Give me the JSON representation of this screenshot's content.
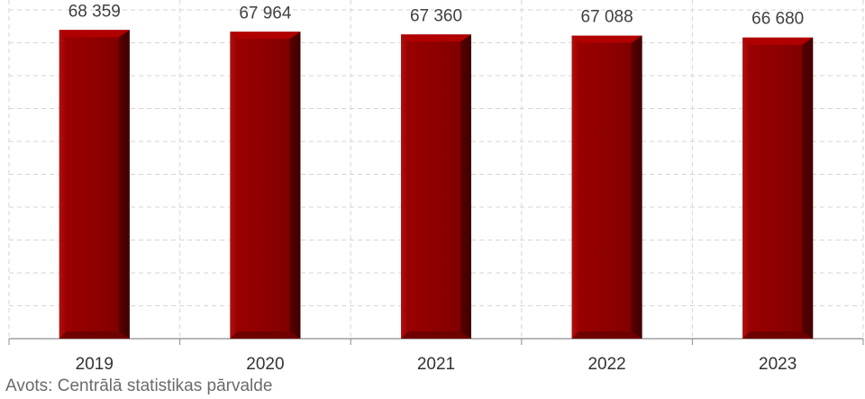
{
  "chart_data": {
    "type": "bar",
    "categories": [
      "2019",
      "2020",
      "2021",
      "2022",
      "2023"
    ],
    "values": [
      68359,
      67964,
      67360,
      67088,
      66680
    ],
    "value_labels": [
      "68 359",
      "67 964",
      "67 360",
      "67 088",
      "66 680"
    ],
    "ylim": [
      0,
      75000
    ],
    "grid": true,
    "legend": "none",
    "bar_color": "#8b0000"
  },
  "source": "Avots: Centrālā statistikas pārvalde"
}
